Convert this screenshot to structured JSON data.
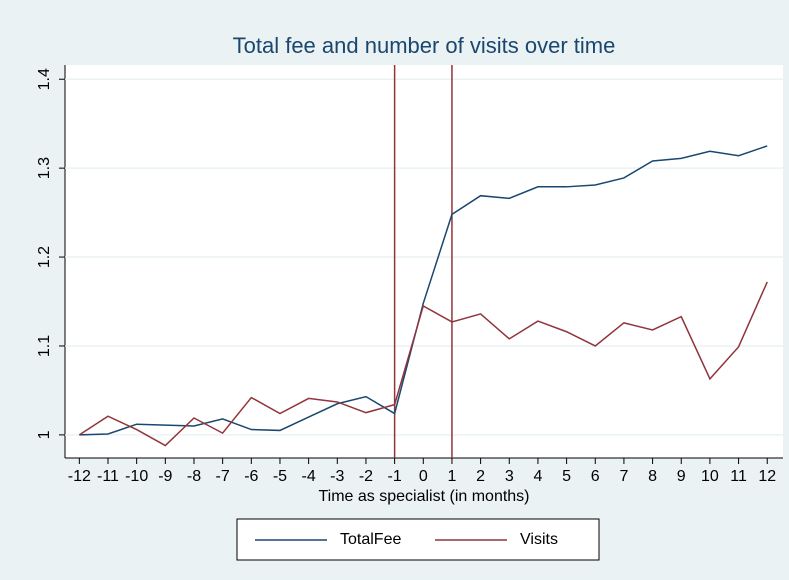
{
  "chart_data": {
    "type": "line",
    "title": "Total fee and number of visits over time",
    "xlabel": "Time as specialist (in months)",
    "x": [
      -12,
      -11,
      -10,
      -9,
      -8,
      -7,
      -6,
      -5,
      -4,
      -3,
      -2,
      -1,
      0,
      1,
      2,
      3,
      4,
      5,
      6,
      7,
      8,
      9,
      10,
      11,
      12
    ],
    "series": [
      {
        "name": "TotalFee",
        "color": "#1a476f",
        "values": [
          1.0,
          1.001,
          1.012,
          1.011,
          1.01,
          1.018,
          1.006,
          1.005,
          1.02,
          1.035,
          1.043,
          1.024,
          1.148,
          1.248,
          1.269,
          1.266,
          1.279,
          1.279,
          1.281,
          1.289,
          1.308,
          1.311,
          1.319,
          1.314,
          1.325
        ]
      },
      {
        "name": "Visits",
        "color": "#90353b",
        "values": [
          1.0,
          1.021,
          1.006,
          0.988,
          1.019,
          1.002,
          1.042,
          1.024,
          1.041,
          1.037,
          1.025,
          1.034,
          1.145,
          1.127,
          1.136,
          1.108,
          1.128,
          1.116,
          1.1,
          1.126,
          1.118,
          1.133,
          1.063,
          1.099,
          1.172
        ]
      }
    ],
    "vlines": [
      -1,
      1
    ],
    "vline_color": "#90353b",
    "xlim": [
      -12.5,
      12.55
    ],
    "xticks": [
      -12,
      -11,
      -10,
      -9,
      -8,
      -7,
      -6,
      -5,
      -4,
      -3,
      -2,
      -1,
      0,
      1,
      2,
      3,
      4,
      5,
      6,
      7,
      8,
      9,
      10,
      11,
      12
    ],
    "ylim": [
      0.974,
      1.416
    ],
    "yticks": [
      1,
      1.1,
      1.2,
      1.3,
      1.4
    ],
    "grid": true,
    "legend": "bottom"
  }
}
